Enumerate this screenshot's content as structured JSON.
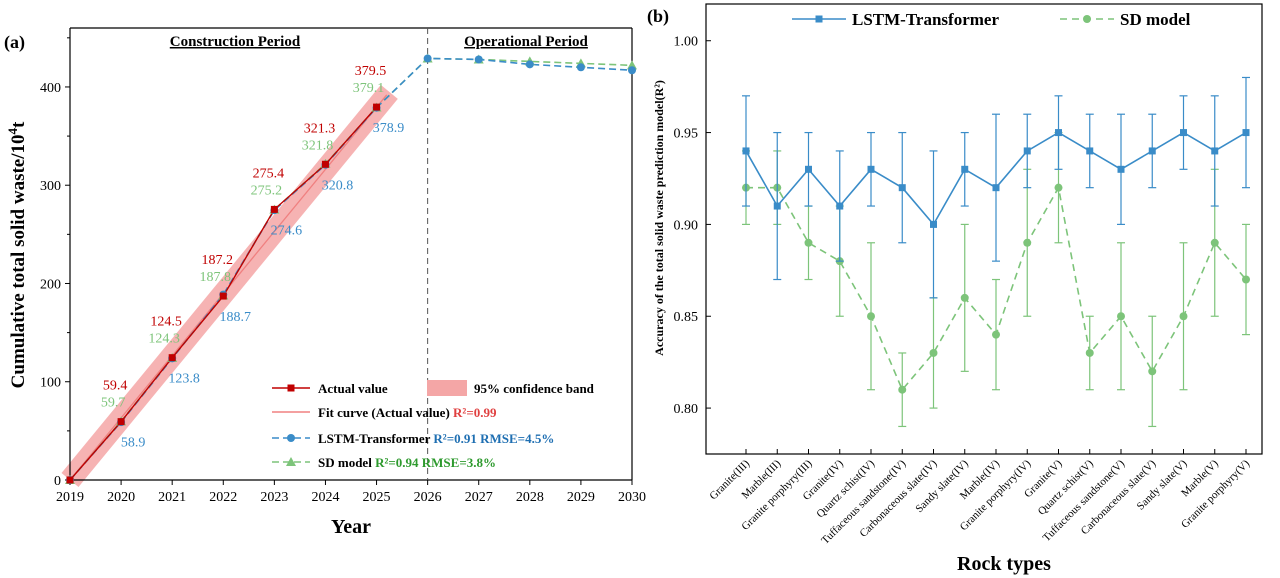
{
  "chart_data": [
    {
      "type": "line",
      "panel": "(a)",
      "periods": [
        "Construction Period",
        "Operational Period"
      ],
      "xlabel": "Year",
      "ylabel_main": "Cumulative total solid waste/10",
      "ylabel_sup": "4",
      "ylabel_end": "t",
      "x": [
        2019,
        2020,
        2021,
        2022,
        2023,
        2024,
        2025,
        2026,
        2027,
        2028,
        2029,
        2030
      ],
      "xlim": [
        2019,
        2030
      ],
      "ylim": [
        0,
        460
      ],
      "yticks": [
        0,
        100,
        200,
        300,
        400
      ],
      "colors": {
        "actual": "#c00000",
        "fit": "#f08080",
        "band": "#f4a6a6",
        "lstm": "#3a8cc8",
        "sd": "#7dc47a"
      },
      "series": [
        {
          "name": "Actual value",
          "x": [
            2019,
            2020,
            2021,
            2022,
            2023,
            2024,
            2025
          ],
          "values": [
            0,
            59.4,
            124.5,
            187.2,
            275.4,
            321.3,
            379.5
          ]
        },
        {
          "name": "LSTM-Transformer",
          "x": [
            2019,
            2020,
            2021,
            2022,
            2023,
            2024,
            2025,
            2026,
            2027,
            2028,
            2029,
            2030
          ],
          "values": [
            0,
            58.9,
            123.8,
            188.7,
            274.6,
            320.8,
            378.9,
            429,
            428,
            423,
            420,
            417
          ]
        },
        {
          "name": "SD model",
          "x": [
            2019,
            2020,
            2021,
            2022,
            2023,
            2024,
            2025,
            2026,
            2027,
            2028,
            2029,
            2030
          ],
          "values": [
            0,
            59.7,
            124.3,
            187.8,
            275.2,
            321.8,
            379.1,
            429,
            428,
            426,
            424,
            422
          ]
        }
      ],
      "labels": {
        "actual": [
          "59.4",
          "124.5",
          "187.2",
          "275.4",
          "321.3",
          "379.5"
        ],
        "lstm": [
          "58.9",
          "123.8",
          "188.7",
          "274.6",
          "320.8",
          "378.9"
        ],
        "sd": [
          "59.7",
          "124.3",
          "187.8",
          "275.2",
          "321.8",
          "379.1"
        ]
      },
      "legend": {
        "actual": "Actual value",
        "band": "95% confidence band",
        "fit": "Fit curve (Actual value)",
        "fit_r2": "R²=0.99",
        "lstm": "LSTM-Transformer",
        "lstm_stats": "R²=0.91 RMSE=4.5%",
        "sd": "SD model",
        "sd_stats": "R²=0.94 RMSE=3.8%"
      }
    },
    {
      "type": "line",
      "panel": "(b)",
      "xlabel": "Rock types",
      "ylabel": "Accuracy of the total solid waste prediction model(R²)",
      "ylim": [
        0.775,
        1.02
      ],
      "yticks": [
        "0.80",
        "0.85",
        "0.90",
        "0.95",
        "1.00"
      ],
      "categories": [
        "Granite(III)",
        "Marble(III)",
        "Granite porphyry(III)",
        "Granite(IV)",
        "Quartz schist(IV)",
        "Tuffaceous sandstone(IV)",
        "Carbonaceous slate(IV)",
        "Sandy slate(IV)",
        "Marble(IV)",
        "Granite porphyry(IV)",
        "Granite(V)",
        "Quartz schist(V)",
        "Tuffaceous sandstone(V)",
        "Carbonaceous slate(V)",
        "Sandy slate(V)",
        "Marble(V)",
        "Granite porphyry(V)"
      ],
      "series": [
        {
          "name": "LSTM-Transformer",
          "values": [
            0.94,
            0.91,
            0.93,
            0.91,
            0.93,
            0.92,
            0.9,
            0.93,
            0.92,
            0.94,
            0.95,
            0.94,
            0.93,
            0.94,
            0.95,
            0.94,
            0.95
          ],
          "err": [
            0.03,
            0.04,
            0.02,
            0.03,
            0.02,
            0.03,
            0.04,
            0.02,
            0.04,
            0.02,
            0.02,
            0.02,
            0.03,
            0.02,
            0.02,
            0.03,
            0.03
          ]
        },
        {
          "name": "SD model",
          "values": [
            0.92,
            0.92,
            0.89,
            0.88,
            0.85,
            0.81,
            0.83,
            0.86,
            0.84,
            0.89,
            0.92,
            0.83,
            0.85,
            0.82,
            0.85,
            0.89,
            0.87
          ],
          "err": [
            0.02,
            0.02,
            0.02,
            0.03,
            0.04,
            0.02,
            0.03,
            0.04,
            0.03,
            0.04,
            0.03,
            0.02,
            0.04,
            0.03,
            0.04,
            0.04,
            0.03
          ]
        }
      ],
      "colors": {
        "lstm": "#3a8cc8",
        "sd": "#7dc47a"
      }
    }
  ]
}
